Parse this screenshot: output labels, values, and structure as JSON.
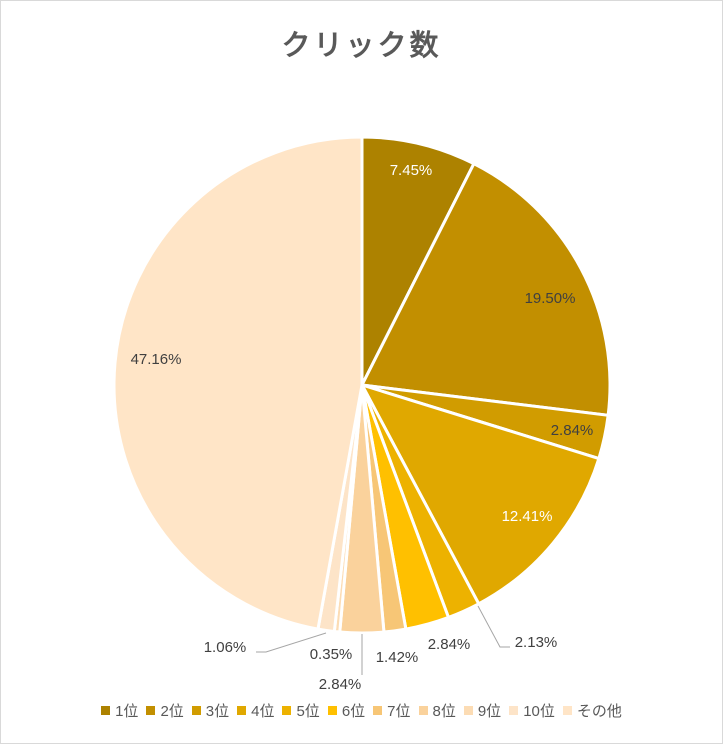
{
  "chart_data": {
    "type": "pie",
    "title": "クリック数",
    "categories": [
      "1位",
      "2位",
      "3位",
      "4位",
      "5位",
      "6位",
      "7位",
      "8位",
      "9位",
      "10位",
      "その他"
    ],
    "values": [
      7.45,
      19.5,
      2.84,
      12.41,
      2.13,
      2.84,
      1.42,
      2.84,
      0.35,
      1.06,
      47.16
    ],
    "labels": [
      "7.45%",
      "19.50%",
      "2.84%",
      "12.41%",
      "2.13%",
      "2.84%",
      "1.42%",
      "2.84%",
      "0.35%",
      "1.06%",
      "47.16%"
    ],
    "colors": [
      "#AD8200",
      "#C28F00",
      "#D19C00",
      "#E0A800",
      "#EDB200",
      "#FFC000",
      "#F7C676",
      "#FAD29C",
      "#FCDCB4",
      "#FDE4C8",
      "#FFE5C7"
    ],
    "legend": "bottom",
    "start": "12 o'clock",
    "direction": "clockwise"
  }
}
